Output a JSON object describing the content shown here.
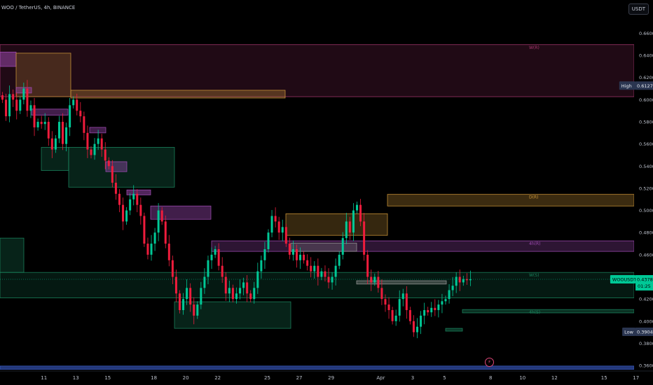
{
  "header": {
    "title": "WOO / TetherUS, 4h, BINANCE",
    "currency_button": "USDT"
  },
  "colors": {
    "up": "#00c896",
    "down": "#ef1c3c",
    "grid_text": "#bcc1cc",
    "background": "#000000"
  },
  "chart_data": {
    "type": "candlestick",
    "y_axis": {
      "min": 0.355,
      "max": 0.69,
      "ticks": [
        "0.3600",
        "0.3800",
        "0.4000",
        "0.4200",
        "0.4400",
        "0.4600",
        "0.4800",
        "0.5000",
        "0.5200",
        "0.5400",
        "0.5600",
        "0.5800",
        "0.6000",
        "0.6200",
        "0.6400",
        "0.6600"
      ]
    },
    "x_axis": {
      "ticks": [
        {
          "label": "11",
          "slot": 12
        },
        {
          "label": "13",
          "slot": 21
        },
        {
          "label": "15",
          "slot": 30
        },
        {
          "label": "18",
          "slot": 43
        },
        {
          "label": "20",
          "slot": 52
        },
        {
          "label": "22",
          "slot": 61
        },
        {
          "label": "25",
          "slot": 75
        },
        {
          "label": "27",
          "slot": 84
        },
        {
          "label": "29",
          "slot": 93
        },
        {
          "label": "Apr",
          "slot": 107
        },
        {
          "label": "3",
          "slot": 116
        },
        {
          "label": "5",
          "slot": 125
        },
        {
          "label": "8",
          "slot": 138
        },
        {
          "label": "10",
          "slot": 147
        },
        {
          "label": "12",
          "slot": 156
        },
        {
          "label": "15",
          "slot": 170
        },
        {
          "label": "17",
          "slot": 179
        }
      ]
    },
    "price_labels": [
      {
        "tag": "High",
        "value": "0.6127",
        "price": 0.6127,
        "style": "high"
      },
      {
        "tag": "WOOUSDT",
        "value": "0.4378",
        "price": 0.4378,
        "style": "last",
        "countdown": "01:25"
      },
      {
        "tag": "Low",
        "value": "0.3904",
        "price": 0.3904,
        "style": "low"
      }
    ],
    "zones": [
      {
        "label": "W(R)",
        "x0": 0,
        "x1": 905,
        "p0": 0.6027,
        "p1": 0.6497,
        "color": "#b03a74",
        "opacity": 0.18,
        "label_x": 755
      },
      {
        "label": "D(R)",
        "x0": 553,
        "x1": 905,
        "p0": 0.504,
        "p1": 0.5145,
        "color": "#d39a3a",
        "opacity": 0.28,
        "label_x": 755
      },
      {
        "label": "4h(R)",
        "x0": 302,
        "x1": 905,
        "p0": 0.463,
        "p1": 0.4725,
        "color": "#a34cb8",
        "opacity": 0.28,
        "label_x": 755
      },
      {
        "label": "W(S)",
        "x0": 0,
        "x1": 905,
        "p0": 0.421,
        "p1": 0.444,
        "color": "#1c8a62",
        "opacity": 0.18,
        "label_x": 755
      },
      {
        "label": "4h(S)",
        "x0": 660,
        "x1": 905,
        "p0": 0.4075,
        "p1": 0.4105,
        "color": "#1c8a62",
        "opacity": 0.35,
        "label_x": 755
      },
      {
        "label": "",
        "x0": 0,
        "x1": 905,
        "p0": 0.3565,
        "p1": 0.3595,
        "color": "#3a5cc8",
        "opacity": 0.6,
        "label_x": 0
      },
      {
        "label": "",
        "x0": 0,
        "x1": 23,
        "p0": 0.63,
        "p1": 0.643,
        "color": "#a34cb8",
        "opacity": 0.5,
        "label_x": 0
      },
      {
        "label": "",
        "x0": 23,
        "x1": 101,
        "p0": 0.6027,
        "p1": 0.642,
        "color": "#d39a3a",
        "opacity": 0.22,
        "label_x": 0
      },
      {
        "label": "",
        "x0": 101,
        "x1": 407,
        "p0": 0.6015,
        "p1": 0.6085,
        "color": "#d39a3a",
        "opacity": 0.3,
        "label_x": 0
      },
      {
        "label": "",
        "x0": 23,
        "x1": 45,
        "p0": 0.606,
        "p1": 0.611,
        "color": "#a34cb8",
        "opacity": 0.4,
        "label_x": 0
      },
      {
        "label": "",
        "x0": 45,
        "x1": 97,
        "p0": 0.586,
        "p1": 0.5915,
        "color": "#a34cb8",
        "opacity": 0.4,
        "label_x": 0
      },
      {
        "label": "",
        "x0": 128,
        "x1": 151,
        "p0": 0.57,
        "p1": 0.575,
        "color": "#a34cb8",
        "opacity": 0.4,
        "label_x": 0
      },
      {
        "label": "",
        "x0": 59,
        "x1": 98,
        "p0": 0.536,
        "p1": 0.557,
        "color": "#1c8a62",
        "opacity": 0.25,
        "label_x": 0
      },
      {
        "label": "",
        "x0": 98,
        "x1": 249,
        "p0": 0.521,
        "p1": 0.557,
        "color": "#1c8a62",
        "opacity": 0.25,
        "label_x": 0
      },
      {
        "label": "",
        "x0": 151,
        "x1": 181,
        "p0": 0.535,
        "p1": 0.544,
        "color": "#a34cb8",
        "opacity": 0.4,
        "label_x": 0
      },
      {
        "label": "",
        "x0": 181,
        "x1": 215,
        "p0": 0.514,
        "p1": 0.5185,
        "color": "#a34cb8",
        "opacity": 0.5,
        "label_x": 0
      },
      {
        "label": "",
        "x0": 215,
        "x1": 301,
        "p0": 0.492,
        "p1": 0.504,
        "color": "#a34cb8",
        "opacity": 0.4,
        "label_x": 0
      },
      {
        "label": "",
        "x0": 0,
        "x1": 34,
        "p0": 0.444,
        "p1": 0.475,
        "color": "#1c8a62",
        "opacity": 0.25,
        "label_x": 0
      },
      {
        "label": "",
        "x0": 249,
        "x1": 415,
        "p0": 0.3935,
        "p1": 0.4175,
        "color": "#1c8a62",
        "opacity": 0.25,
        "label_x": 0
      },
      {
        "label": "",
        "x0": 408,
        "x1": 553,
        "p0": 0.4775,
        "p1": 0.497,
        "color": "#d39a3a",
        "opacity": 0.25,
        "label_x": 0
      },
      {
        "label": "",
        "x0": 415,
        "x1": 509,
        "p0": 0.463,
        "p1": 0.4705,
        "color": "#9a9a9a",
        "opacity": 0.25,
        "label_x": 0
      },
      {
        "label": "",
        "x0": 509,
        "x1": 637,
        "p0": 0.4335,
        "p1": 0.4365,
        "color": "#9a9a9a",
        "opacity": 0.35,
        "label_x": 0
      },
      {
        "label": "",
        "x0": 636,
        "x1": 660,
        "p0": 0.391,
        "p1": 0.3935,
        "color": "#1c8a62",
        "opacity": 0.4,
        "label_x": 0
      }
    ],
    "candle_closes": [
      0.6,
      0.585,
      0.605,
      0.6,
      0.59,
      0.6,
      0.61,
      0.59,
      0.595,
      0.575,
      0.58,
      0.578,
      0.58,
      0.565,
      0.555,
      0.565,
      0.58,
      0.56,
      0.575,
      0.595,
      0.6,
      0.59,
      0.585,
      0.57,
      0.555,
      0.55,
      0.56,
      0.565,
      0.555,
      0.545,
      0.54,
      0.525,
      0.515,
      0.505,
      0.49,
      0.5,
      0.51,
      0.515,
      0.505,
      0.495,
      0.47,
      0.46,
      0.47,
      0.48,
      0.5,
      0.49,
      0.47,
      0.455,
      0.44,
      0.425,
      0.41,
      0.42,
      0.43,
      0.415,
      0.405,
      0.415,
      0.43,
      0.44,
      0.455,
      0.46,
      0.465,
      0.45,
      0.44,
      0.425,
      0.43,
      0.42,
      0.425,
      0.43,
      0.435,
      0.425,
      0.42,
      0.43,
      0.445,
      0.455,
      0.465,
      0.48,
      0.495,
      0.49,
      0.48,
      0.485,
      0.47,
      0.46,
      0.465,
      0.455,
      0.46,
      0.455,
      0.45,
      0.445,
      0.45,
      0.44,
      0.445,
      0.44,
      0.435,
      0.44,
      0.45,
      0.46,
      0.475,
      0.49,
      0.48,
      0.5,
      0.505,
      0.49,
      0.46,
      0.44,
      0.435,
      0.44,
      0.43,
      0.42,
      0.415,
      0.41,
      0.4,
      0.405,
      0.42,
      0.425,
      0.41,
      0.4,
      0.39,
      0.395,
      0.405,
      0.41,
      0.408,
      0.412,
      0.41,
      0.415,
      0.418,
      0.42,
      0.428,
      0.432,
      0.44,
      0.435,
      0.438,
      0.437,
      0.4378
    ]
  }
}
